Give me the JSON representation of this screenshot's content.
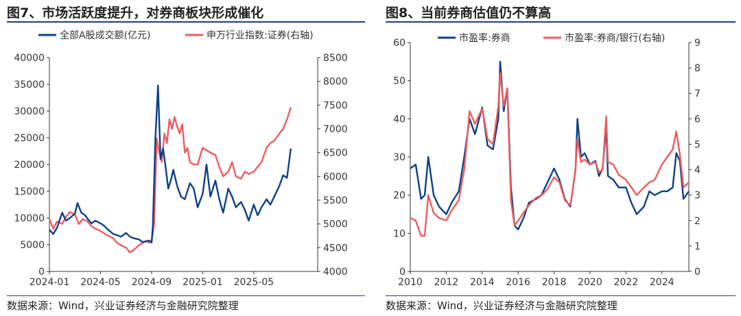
{
  "panels": [
    {
      "title": "图7、市场活跃度提升，对券商板块形成催化",
      "source": "数据来源：Wind，兴业证券经济与金融研究院整理"
    },
    {
      "title": "图8、当前券商估值仍不算高",
      "source": "数据来源：Wind，兴业证券经济与金融研究院整理"
    }
  ],
  "colors": {
    "blue": "#0d3f86",
    "red": "#ee5b5f",
    "rule": "#1f3d7a"
  },
  "chart_data": [
    {
      "type": "line",
      "title": "",
      "x_ticks": [
        "2024-01",
        "2024-05",
        "2024-09",
        "2025-01",
        "2025-05"
      ],
      "x_range": [
        0,
        21
      ],
      "x_tick_pos": [
        0,
        4,
        8,
        12,
        16
      ],
      "y_left": {
        "range": [
          0,
          40000
        ],
        "ticks": [
          0,
          5000,
          10000,
          15000,
          20000,
          25000,
          30000,
          35000,
          40000
        ]
      },
      "y_right": {
        "range": [
          4000,
          8500
        ],
        "ticks": [
          4000,
          4500,
          5000,
          5500,
          6000,
          6500,
          7000,
          7500,
          8000,
          8500
        ]
      },
      "series": [
        {
          "name": "全部A股成交额(亿元)",
          "axis": "left",
          "color": "#0d3f86",
          "x": [
            0,
            0.3,
            0.6,
            1.0,
            1.3,
            1.6,
            2.0,
            2.2,
            2.5,
            2.8,
            3.0,
            3.3,
            3.6,
            4.0,
            4.3,
            4.6,
            5.0,
            5.3,
            5.6,
            6.0,
            6.3,
            6.6,
            7.0,
            7.3,
            7.6,
            7.8,
            8.0,
            8.1,
            8.3,
            8.5,
            8.7,
            8.9,
            9.1,
            9.3,
            9.5,
            9.7,
            10.0,
            10.3,
            10.6,
            11.0,
            11.3,
            11.6,
            12.0,
            12.3,
            12.6,
            13.0,
            13.3,
            13.6,
            14.0,
            14.3,
            14.6,
            15.0,
            15.3,
            15.6,
            16.0,
            16.3,
            16.6,
            17.0,
            17.3,
            17.6,
            18.0,
            18.3,
            18.6,
            18.9
          ],
          "values": [
            7800,
            7000,
            8200,
            11000,
            9500,
            10000,
            10800,
            12800,
            11000,
            10500,
            9800,
            9000,
            9500,
            9000,
            8500,
            7800,
            7000,
            6800,
            6500,
            7200,
            6500,
            6200,
            6000,
            5500,
            5600,
            5800,
            5400,
            8500,
            25000,
            34800,
            21000,
            23000,
            19500,
            15500,
            17000,
            19000,
            16000,
            14000,
            13500,
            16500,
            15500,
            12000,
            14500,
            20000,
            14000,
            17000,
            13500,
            11000,
            15500,
            14000,
            12000,
            13000,
            11500,
            9500,
            12500,
            10500,
            12000,
            13500,
            12500,
            14000,
            16000,
            18000,
            17500,
            23000
          ]
        },
        {
          "name": "申万行业指数:证券(右轴)",
          "axis": "right",
          "color": "#ee5b5f",
          "x": [
            0,
            0.3,
            0.6,
            1.0,
            1.3,
            1.6,
            2.0,
            2.3,
            2.6,
            3.0,
            3.3,
            3.6,
            4.0,
            4.3,
            4.6,
            5.0,
            5.3,
            5.6,
            6.0,
            6.3,
            6.6,
            7.0,
            7.3,
            7.6,
            7.8,
            8.0,
            8.2,
            8.4,
            8.6,
            8.8,
            9.0,
            9.2,
            9.4,
            9.6,
            9.8,
            10.0,
            10.2,
            10.4,
            10.6,
            10.8,
            11.0,
            11.3,
            11.6,
            12.0,
            12.3,
            12.6,
            13.0,
            13.3,
            13.6,
            14.0,
            14.3,
            14.6,
            15.0,
            15.3,
            15.6,
            16.0,
            16.3,
            16.6,
            17.0,
            17.3,
            17.6,
            18.0,
            18.3,
            18.6,
            18.9
          ],
          "values": [
            5100,
            4900,
            5050,
            5000,
            5150,
            5250,
            5200,
            5000,
            5100,
            5050,
            4950,
            4900,
            4850,
            4800,
            4750,
            4700,
            4600,
            4550,
            4500,
            4400,
            4450,
            4550,
            4600,
            4650,
            4600,
            4650,
            5000,
            6800,
            6500,
            6300,
            6900,
            6700,
            7200,
            7000,
            7250,
            7050,
            6900,
            7100,
            6500,
            6600,
            6300,
            6250,
            6250,
            6600,
            6550,
            6500,
            6450,
            6200,
            6000,
            6100,
            6300,
            6000,
            5950,
            6100,
            6050,
            6100,
            6200,
            6300,
            6600,
            6700,
            6750,
            6900,
            7000,
            7200,
            7450
          ]
        }
      ]
    },
    {
      "type": "line",
      "title": "",
      "x_ticks": [
        "2010",
        "2012",
        "2014",
        "2016",
        "2018",
        "2020",
        "2022",
        "2024"
      ],
      "x_range": [
        2010,
        2025.5
      ],
      "y_left": {
        "range": [
          0,
          60
        ],
        "ticks": [
          0,
          10,
          20,
          30,
          40,
          50,
          60
        ]
      },
      "y_right": {
        "range": [
          0,
          9
        ],
        "ticks": [
          0,
          1,
          2,
          3,
          4,
          5,
          6,
          7,
          8,
          9
        ]
      },
      "series": [
        {
          "name": "市盈率:券商",
          "axis": "left",
          "color": "#0d3f86",
          "x": [
            2010.0,
            2010.3,
            2010.6,
            2010.8,
            2011.0,
            2011.3,
            2011.6,
            2012.0,
            2012.3,
            2012.7,
            2013.0,
            2013.3,
            2013.6,
            2014.0,
            2014.3,
            2014.6,
            2014.9,
            2015.0,
            2015.2,
            2015.4,
            2015.6,
            2015.8,
            2016.0,
            2016.3,
            2016.6,
            2017.0,
            2017.3,
            2017.6,
            2018.0,
            2018.3,
            2018.6,
            2018.9,
            2019.0,
            2019.2,
            2019.3,
            2019.5,
            2019.7,
            2020.0,
            2020.3,
            2020.5,
            2020.7,
            2020.9,
            2021.0,
            2021.3,
            2021.6,
            2022.0,
            2022.3,
            2022.6,
            2023.0,
            2023.3,
            2023.6,
            2024.0,
            2024.3,
            2024.6,
            2024.8,
            2025.0,
            2025.2,
            2025.5
          ],
          "values": [
            27,
            28,
            19,
            20,
            30,
            20,
            17,
            15,
            18,
            21,
            30,
            40,
            36,
            43,
            33,
            32,
            40,
            55,
            42,
            48,
            22,
            12,
            11,
            14,
            18,
            19,
            20,
            23,
            27,
            24,
            19,
            17,
            20,
            27,
            40,
            30,
            31,
            28,
            29,
            25,
            27,
            38,
            25,
            24,
            22,
            22,
            18,
            15,
            17,
            21,
            20,
            21,
            21,
            22,
            31,
            29,
            19,
            21
          ]
        },
        {
          "name": "市盈率:券商/银行(右轴)",
          "axis": "right",
          "color": "#ee5b5f",
          "x": [
            2010.0,
            2010.3,
            2010.6,
            2010.8,
            2011.0,
            2011.3,
            2011.6,
            2012.0,
            2012.3,
            2012.7,
            2013.0,
            2013.3,
            2013.6,
            2014.0,
            2014.3,
            2014.6,
            2014.9,
            2015.0,
            2015.2,
            2015.4,
            2015.6,
            2015.8,
            2016.0,
            2016.3,
            2016.6,
            2017.0,
            2017.3,
            2017.6,
            2018.0,
            2018.3,
            2018.6,
            2018.9,
            2019.0,
            2019.2,
            2019.3,
            2019.5,
            2019.7,
            2020.0,
            2020.3,
            2020.5,
            2020.7,
            2020.9,
            2021.0,
            2021.3,
            2021.6,
            2022.0,
            2022.3,
            2022.6,
            2023.0,
            2023.3,
            2023.6,
            2024.0,
            2024.3,
            2024.6,
            2024.8,
            2025.0,
            2025.2,
            2025.5
          ],
          "values": [
            2.1,
            2.0,
            1.4,
            1.4,
            3.0,
            2.3,
            2.1,
            2.0,
            2.4,
            2.8,
            4.0,
            6.3,
            5.8,
            6.4,
            5.2,
            5.0,
            6.5,
            7.8,
            6.5,
            7.2,
            2.8,
            1.8,
            2.0,
            2.3,
            2.6,
            2.9,
            3.0,
            3.2,
            3.7,
            3.5,
            2.8,
            2.6,
            3.0,
            4.1,
            5.2,
            4.3,
            4.4,
            4.2,
            4.3,
            3.9,
            4.0,
            6.1,
            4.3,
            4.2,
            3.8,
            3.6,
            3.3,
            3.0,
            3.3,
            3.5,
            3.6,
            4.2,
            4.5,
            4.8,
            5.5,
            4.6,
            3.3,
            3.5
          ]
        }
      ]
    }
  ]
}
